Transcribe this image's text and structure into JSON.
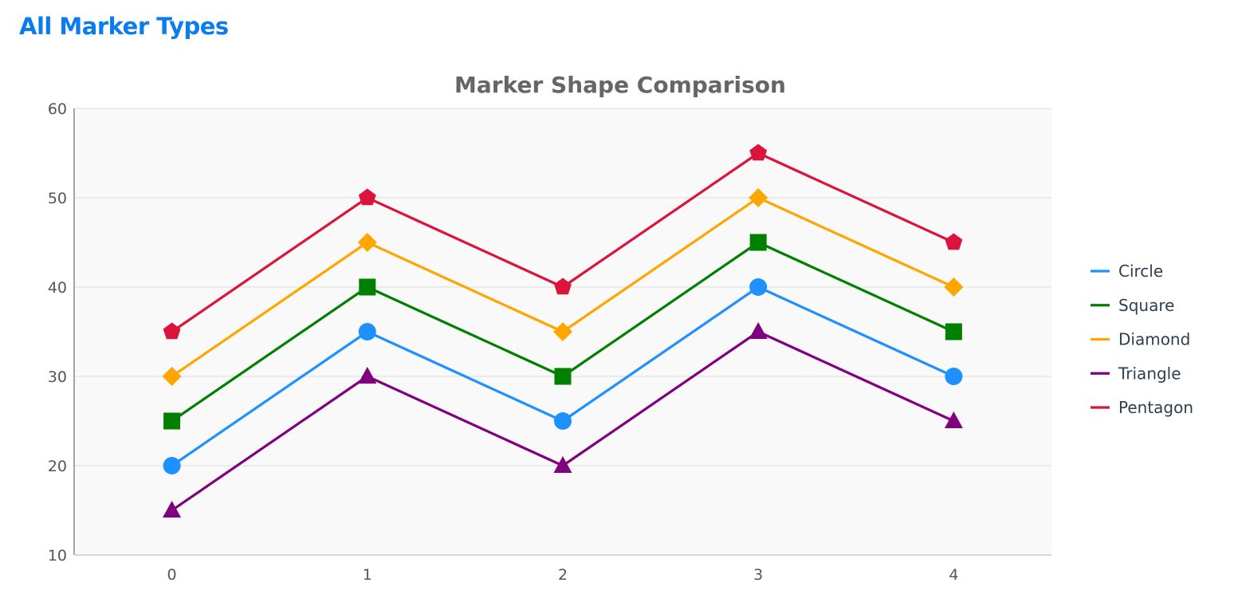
{
  "page": {
    "heading": "All Marker Types",
    "heading_color": "#0a7cf0"
  },
  "chart_data": {
    "type": "line",
    "title": "Marker Shape Comparison",
    "xlabel": "",
    "ylabel": "",
    "x": [
      0,
      1,
      2,
      3,
      4
    ],
    "xlim": [
      -0.5,
      4.5
    ],
    "ylim": [
      10,
      60
    ],
    "y_ticks": [
      10,
      20,
      30,
      40,
      50,
      60
    ],
    "x_ticks": [
      0,
      1,
      2,
      3,
      4
    ],
    "grid": true,
    "plot_background": "#f9f9f9",
    "legend_position": "right",
    "series": [
      {
        "name": "Circle",
        "marker": "circle",
        "color": "#1e90ff",
        "values": [
          20,
          35,
          25,
          40,
          30
        ]
      },
      {
        "name": "Square",
        "marker": "square",
        "color": "#008000",
        "values": [
          25,
          40,
          30,
          45,
          35
        ]
      },
      {
        "name": "Diamond",
        "marker": "diamond",
        "color": "#ffa500",
        "values": [
          30,
          45,
          35,
          50,
          40
        ]
      },
      {
        "name": "Triangle",
        "marker": "triangle",
        "color": "#800080",
        "values": [
          15,
          30,
          20,
          35,
          25
        ]
      },
      {
        "name": "Pentagon",
        "marker": "pentagon",
        "color": "#dc143c",
        "values": [
          35,
          50,
          40,
          55,
          45
        ]
      }
    ]
  }
}
